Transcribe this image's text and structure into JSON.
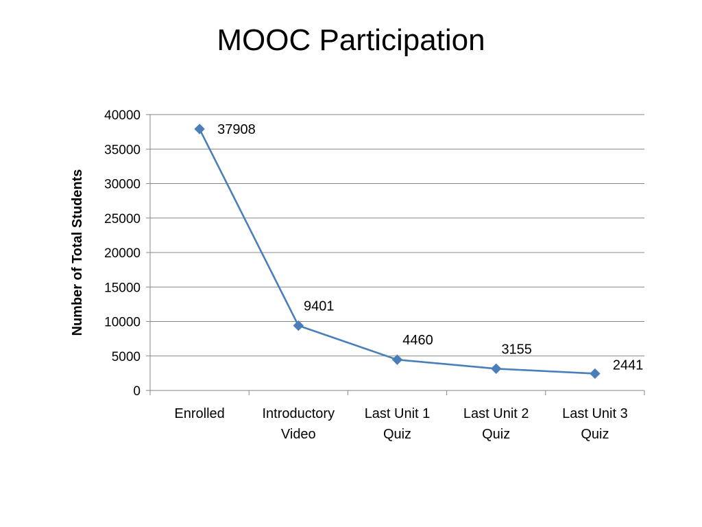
{
  "chart_data": {
    "type": "line",
    "title": "MOOC Participation",
    "xlabel": "",
    "ylabel": "Number of Total Students",
    "categories": [
      [
        "Enrolled"
      ],
      [
        "Introductory",
        "Video"
      ],
      [
        "Last Unit 1",
        "Quiz"
      ],
      [
        "Last Unit 2",
        "Quiz"
      ],
      [
        "Last Unit 3",
        "Quiz"
      ]
    ],
    "series": [
      {
        "values": [
          37908,
          9401,
          4460,
          3155,
          2441
        ],
        "color": "#4A7EBB",
        "marker": "diamond"
      }
    ],
    "data_labels": [
      "37908",
      "9401",
      "4460",
      "3155",
      "2441"
    ],
    "ylim": [
      0,
      40000
    ],
    "y_ticks": [
      0,
      5000,
      10000,
      15000,
      20000,
      25000,
      30000,
      35000,
      40000
    ],
    "grid": true,
    "legend": "none"
  }
}
